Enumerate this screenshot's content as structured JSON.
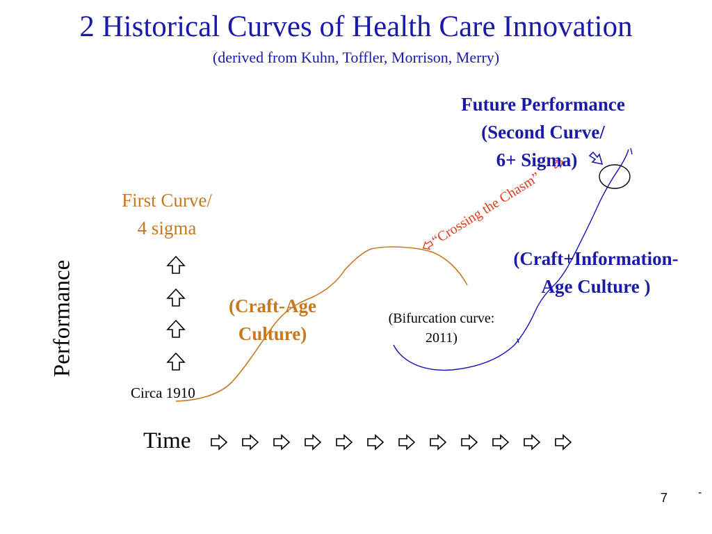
{
  "title": "2 Historical Curves of Health Care Innovation",
  "subtitle": "(derived from Kuhn, Toffler, Morrison, Merry)",
  "future_label": {
    "line1": "Future Performance",
    "line2": "(Second Curve/",
    "line3": "6+ Sigma)"
  },
  "first_curve_label": {
    "line1": "First Curve/",
    "line2": "4 sigma"
  },
  "crossing_label": "“Crossing the Chasm”",
  "craft_info_label": {
    "line1": "(Craft+Information-",
    "line2": "Age Culture )"
  },
  "craft_age_label": {
    "line1": "(Craft-Age",
    "line2": "Culture)"
  },
  "bifurcation_label": "(Bifurcation curve: 2011)",
  "circa_label": "Circa 1910",
  "y_axis_label": "Performance",
  "x_axis_label": "Time",
  "page_number": "7",
  "corner_mark": "-",
  "colors": {
    "title_blue": "#1a1aa6",
    "first_curve_orange": "#c8781e",
    "second_curve_blue": "#1010b8",
    "crossing_red": "#e03a1e"
  },
  "icons": {
    "up_arrow_count": 4,
    "time_arrow_count": 12
  }
}
